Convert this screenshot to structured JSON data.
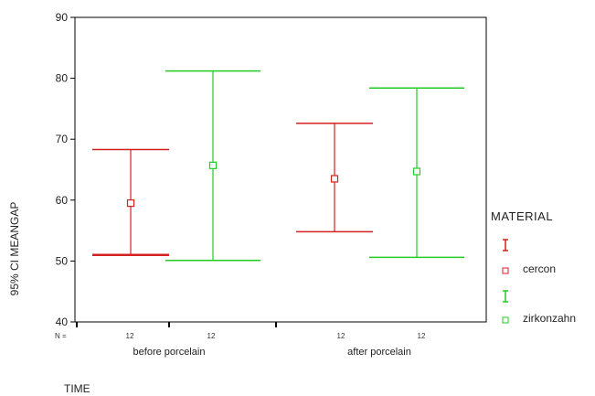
{
  "chart_data": {
    "type": "errorbar",
    "ylabel": "95% CI MEANGAP",
    "xlabel": "TIME",
    "n_label": "N =",
    "ylim": [
      40,
      90
    ],
    "yticks": [
      40,
      50,
      60,
      70,
      80,
      90
    ],
    "categories": [
      "before porcelain",
      "after porcelain"
    ],
    "legend": {
      "title": "MATERIAL",
      "position": "right"
    },
    "series": [
      {
        "name": "cercon",
        "color": "#d42020",
        "n": [
          "12",
          "12"
        ],
        "mean": [
          59.5,
          63.5
        ],
        "lower": [
          51.0,
          54.8
        ],
        "upper": [
          68.3,
          72.6
        ]
      },
      {
        "name": "zirkonzahn",
        "color": "#22cc22",
        "n": [
          "12",
          "12"
        ],
        "mean": [
          65.7,
          64.7
        ],
        "lower": [
          50.1,
          50.6
        ],
        "upper": [
          81.2,
          78.4
        ]
      }
    ]
  }
}
